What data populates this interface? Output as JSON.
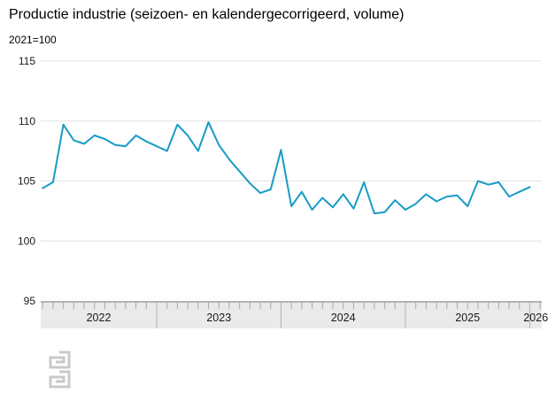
{
  "header": {
    "title": "Productie industrie (seizoen- en kalendergecorrigeerd, volume)",
    "subtitle": "2021=100"
  },
  "colors": {
    "line": "#189bc5",
    "grid": "#e4e4e4",
    "axis_band": "#eaeaea",
    "axis_band_border": "#9e9e9e",
    "tick": "#a8a8a8",
    "year_divider": "#b4b4b4",
    "text": "#1a1a1a",
    "logo": "#c9c9c9"
  },
  "chart_data": {
    "type": "line",
    "title": "Productie industrie (seizoen- en kalendergecorrigeerd, volume)",
    "unit_label": "2021=100",
    "ylim": [
      95,
      115
    ],
    "yticks": [
      95,
      100,
      105,
      110,
      115
    ],
    "grid": "on",
    "legend": "none",
    "x_year_labels": [
      "2022",
      "2023",
      "2024",
      "2025",
      "2026"
    ],
    "x": [
      "2022-01",
      "2022-02",
      "2022-03",
      "2022-04",
      "2022-05",
      "2022-06",
      "2022-07",
      "2022-08",
      "2022-09",
      "2022-10",
      "2022-11",
      "2022-12",
      "2023-01",
      "2023-02",
      "2023-03",
      "2023-04",
      "2023-05",
      "2023-06",
      "2023-07",
      "2023-08",
      "2023-09",
      "2023-10",
      "2023-11",
      "2023-12",
      "2024-01",
      "2024-02",
      "2024-03",
      "2024-04",
      "2024-05",
      "2024-06",
      "2024-07",
      "2024-08",
      "2024-09",
      "2024-10",
      "2024-11",
      "2024-12",
      "2025-01",
      "2025-02",
      "2025-03",
      "2025-04",
      "2025-05",
      "2025-06",
      "2025-07",
      "2025-08",
      "2025-09",
      "2025-10",
      "2025-11",
      "2025-12"
    ],
    "series": [
      {
        "name": "Productie industrie",
        "values": [
          104.4,
          104.9,
          109.7,
          108.4,
          108.1,
          108.8,
          108.5,
          108.0,
          107.9,
          108.8,
          108.3,
          107.9,
          107.5,
          109.7,
          108.8,
          107.5,
          109.9,
          108.0,
          106.8,
          105.8,
          104.8,
          104.0,
          104.3,
          107.6,
          102.9,
          104.1,
          102.6,
          103.6,
          102.8,
          103.9,
          102.7,
          104.9,
          102.3,
          102.4,
          103.4,
          102.6,
          103.1,
          103.9,
          103.3,
          103.7,
          103.8,
          102.9,
          105.0,
          104.7,
          104.9,
          103.7,
          104.1,
          104.5
        ]
      }
    ]
  }
}
